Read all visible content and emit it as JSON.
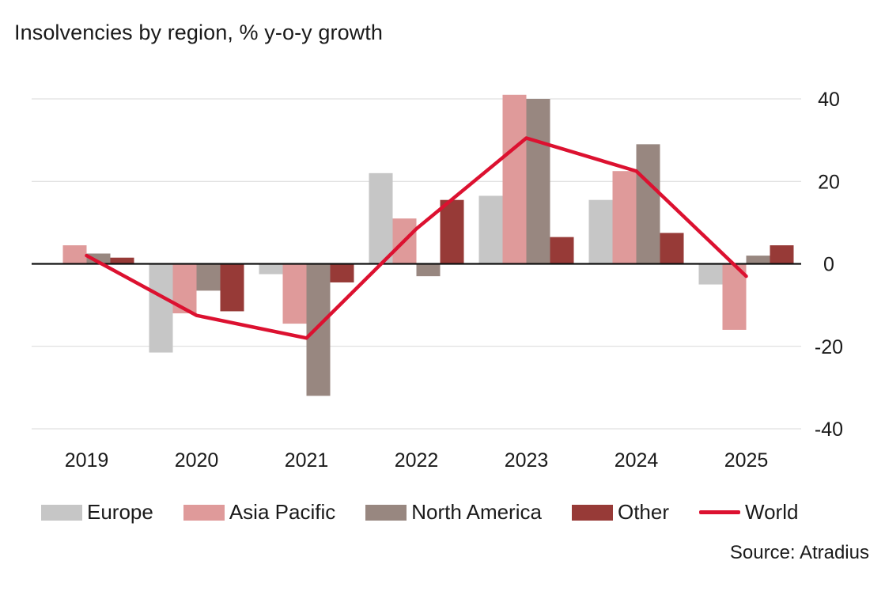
{
  "chart_data": {
    "type": "bar",
    "title": "Insolvencies by region, % y-o-y growth",
    "categories": [
      "2019",
      "2020",
      "2021",
      "2022",
      "2023",
      "2024",
      "2025"
    ],
    "series": [
      {
        "name": "Europe",
        "type": "bar",
        "color": "#c6c6c6",
        "values": [
          0,
          -21.5,
          -2.5,
          22,
          16.5,
          15.5,
          -5
        ]
      },
      {
        "name": "Asia Pacific",
        "type": "bar",
        "color": "#df9a9a",
        "values": [
          4.5,
          -12,
          -14.5,
          11,
          41,
          22.5,
          -16
        ]
      },
      {
        "name": "North America",
        "type": "bar",
        "color": "#988780",
        "values": [
          2.5,
          -6.5,
          -32,
          -3,
          40,
          29,
          2
        ]
      },
      {
        "name": "Other",
        "type": "bar",
        "color": "#973a37",
        "values": [
          1.5,
          -11.5,
          -4.5,
          15.5,
          6.5,
          7.5,
          4.5
        ]
      },
      {
        "name": "World",
        "type": "line",
        "color": "#dc1130",
        "values": [
          2,
          -12.5,
          -18,
          8.5,
          30.5,
          22.5,
          -3
        ]
      }
    ],
    "ylim": [
      -40,
      40
    ],
    "yticks": [
      40,
      20,
      0,
      -20,
      -40
    ],
    "y_axis_side": "right",
    "grid": true,
    "legend_position": "bottom",
    "xlabel": "",
    "ylabel": ""
  },
  "source": "Source: Atradius"
}
